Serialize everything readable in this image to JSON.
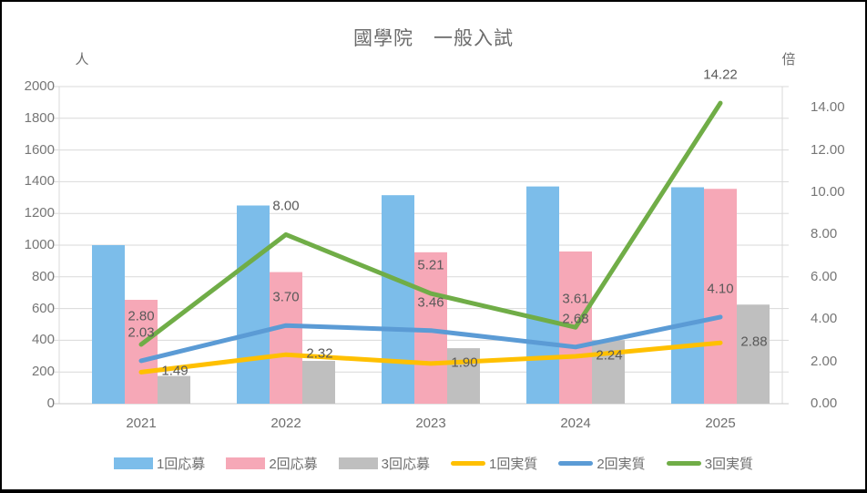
{
  "title": "國學院　一般入試",
  "chart_data": {
    "type": "combo-bar-line",
    "title": "國學院　一般入試",
    "categories": [
      "2021",
      "2022",
      "2023",
      "2024",
      "2025"
    ],
    "bar_series": [
      {
        "name": "1回応募",
        "color": "#7CBDEA",
        "values": [
          1000,
          1250,
          1315,
          1370,
          1365
        ]
      },
      {
        "name": "2回応募",
        "color": "#F6A8B7",
        "values": [
          655,
          830,
          955,
          960,
          1355
        ]
      },
      {
        "name": "3回応募",
        "color": "#BFBFBF",
        "values": [
          175,
          270,
          350,
          400,
          625
        ]
      }
    ],
    "line_series": [
      {
        "name": "1回実質",
        "color": "#FFC000",
        "values": [
          1.49,
          2.32,
          1.9,
          2.24,
          2.88
        ],
        "label_position": "right"
      },
      {
        "name": "2回実質",
        "color": "#5B9BD5",
        "values": [
          2.03,
          3.7,
          3.46,
          2.68,
          4.1
        ],
        "label_position": "above"
      },
      {
        "name": "3回実質",
        "color": "#70AD47",
        "values": [
          2.8,
          8.0,
          5.21,
          3.61,
          14.22
        ],
        "label_position": "above"
      }
    ],
    "left_axis": {
      "unit": "人",
      "min": 0,
      "max": 2000,
      "step": 200
    },
    "right_axis": {
      "unit": "倍",
      "min": 0,
      "max": 14,
      "step": 2,
      "scale_max": 15,
      "decimals": 2
    },
    "legend_position": "bottom",
    "grid": true,
    "gridline_color": "#D9D9D9"
  }
}
